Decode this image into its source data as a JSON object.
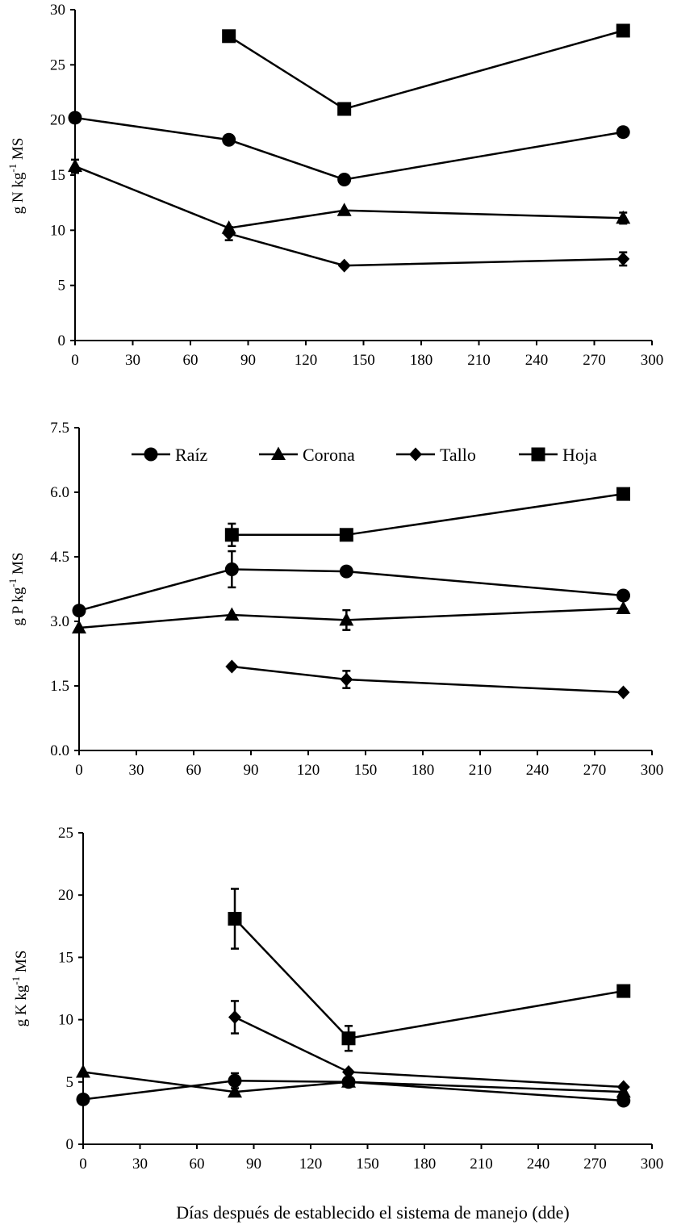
{
  "chart_data": [
    {
      "type": "line",
      "ylabel_main": "g N kg",
      "ylabel_sup": "-1",
      "ylabel_tail": " MS",
      "xlim": [
        0,
        300
      ],
      "ylim": [
        0,
        30
      ],
      "xticks": [
        "0",
        "30",
        "60",
        "90",
        "120",
        "150",
        "180",
        "210",
        "240",
        "270",
        "300"
      ],
      "yticks": [
        "0",
        "5",
        "10",
        "15",
        "20",
        "25",
        "30"
      ],
      "series": [
        {
          "key": "hoja",
          "marker": "square",
          "x": [
            80,
            140,
            285
          ],
          "values": [
            27.6,
            21.0,
            28.1
          ],
          "err": [
            0,
            0,
            0
          ]
        },
        {
          "key": "raiz",
          "marker": "circle",
          "x": [
            0,
            80,
            140,
            285
          ],
          "values": [
            20.2,
            18.2,
            14.6,
            18.9
          ],
          "err": [
            0,
            0,
            0,
            0
          ]
        },
        {
          "key": "corona",
          "marker": "triangle",
          "x": [
            0,
            80,
            140,
            285
          ],
          "values": [
            15.8,
            10.2,
            11.8,
            11.1
          ],
          "err": [
            0.6,
            0,
            0,
            0.5
          ]
        },
        {
          "key": "tallo",
          "marker": "diamond",
          "x": [
            80,
            140,
            285
          ],
          "values": [
            9.7,
            6.8,
            7.4
          ],
          "err": [
            0.6,
            0,
            0.6
          ]
        }
      ]
    },
    {
      "type": "line",
      "ylabel_main": "g P kg",
      "ylabel_sup": "-1",
      "ylabel_tail": " MS",
      "xlim": [
        0,
        300
      ],
      "ylim": [
        0,
        7.5
      ],
      "xticks": [
        "0",
        "30",
        "60",
        "90",
        "120",
        "150",
        "180",
        "210",
        "240",
        "270",
        "300"
      ],
      "yticks": [
        "0.0",
        "1.5",
        "3.0",
        "4.5",
        "6.0",
        "7.5"
      ],
      "legend": {
        "placement": "top",
        "items": [
          {
            "label": "Raíz",
            "marker": "circle"
          },
          {
            "label": "Corona",
            "marker": "triangle"
          },
          {
            "label": "Tallo",
            "marker": "diamond"
          },
          {
            "label": "Hoja",
            "marker": "square"
          }
        ]
      },
      "series": [
        {
          "key": "hoja",
          "marker": "square",
          "x": [
            80,
            140,
            285
          ],
          "values": [
            5.01,
            5.01,
            5.96
          ],
          "err": [
            0.26,
            0,
            0
          ]
        },
        {
          "key": "raiz",
          "marker": "circle",
          "x": [
            0,
            80,
            140,
            285
          ],
          "values": [
            3.25,
            4.21,
            4.16,
            3.6
          ],
          "err": [
            0,
            0.42,
            0,
            0
          ]
        },
        {
          "key": "corona",
          "marker": "triangle",
          "x": [
            0,
            80,
            140,
            285
          ],
          "values": [
            2.85,
            3.15,
            3.03,
            3.3
          ],
          "err": [
            0,
            0,
            0.23,
            0
          ]
        },
        {
          "key": "tallo",
          "marker": "diamond",
          "x": [
            80,
            140,
            285
          ],
          "values": [
            1.95,
            1.65,
            1.35
          ],
          "err": [
            0,
            0.2,
            0
          ]
        }
      ]
    },
    {
      "type": "line",
      "ylabel_main": "g K kg",
      "ylabel_sup": "-1",
      "ylabel_tail": " MS",
      "xlabel": "Días después de establecido el sistema de manejo (dde)",
      "xlim": [
        0,
        300
      ],
      "ylim": [
        0,
        25
      ],
      "xticks": [
        "0",
        "30",
        "60",
        "90",
        "120",
        "150",
        "180",
        "210",
        "240",
        "270",
        "300"
      ],
      "yticks": [
        "0",
        "5",
        "10",
        "15",
        "20",
        "25"
      ],
      "series": [
        {
          "key": "hoja",
          "marker": "square",
          "x": [
            80,
            140,
            285
          ],
          "values": [
            18.1,
            8.5,
            12.3
          ],
          "err": [
            2.4,
            1.0,
            0
          ]
        },
        {
          "key": "tallo",
          "marker": "diamond",
          "x": [
            80,
            140,
            285
          ],
          "values": [
            10.2,
            5.8,
            4.6
          ],
          "err": [
            1.3,
            0,
            0
          ]
        },
        {
          "key": "corona",
          "marker": "triangle",
          "x": [
            0,
            80,
            140,
            285
          ],
          "values": [
            5.8,
            4.2,
            5.0,
            4.2
          ],
          "err": [
            0,
            0,
            0,
            0
          ]
        },
        {
          "key": "raiz",
          "marker": "circle",
          "x": [
            0,
            80,
            140,
            285
          ],
          "values": [
            3.6,
            5.1,
            5.0,
            3.5
          ],
          "err": [
            0,
            0.6,
            0,
            0
          ]
        }
      ]
    }
  ]
}
